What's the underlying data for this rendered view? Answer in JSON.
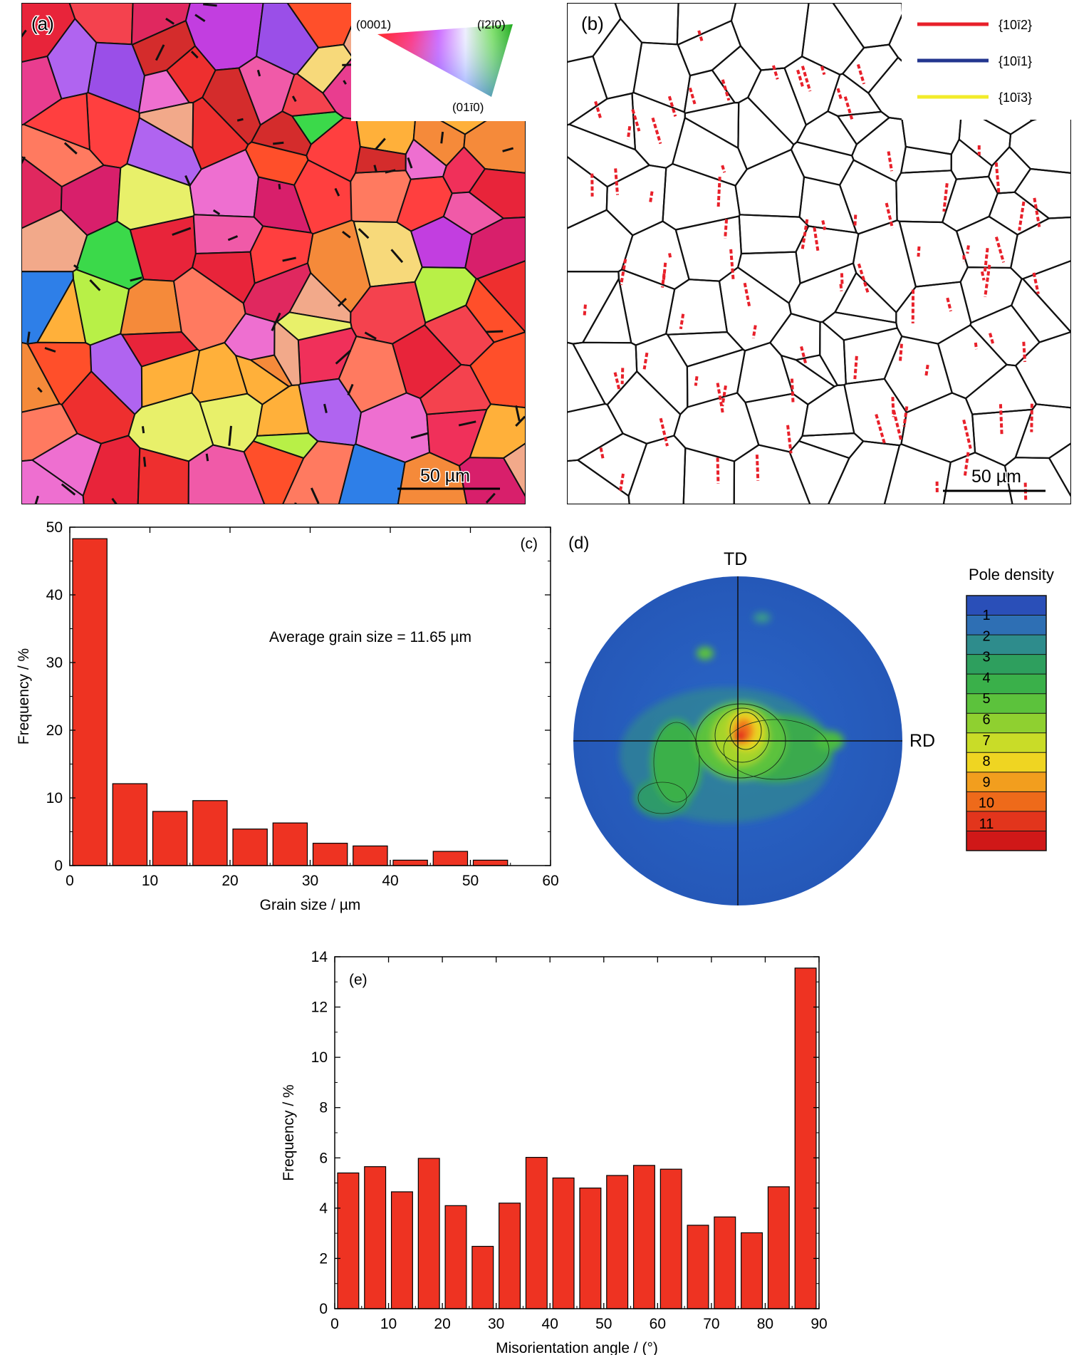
{
  "panels": {
    "a": {
      "label": "(a)",
      "ipf_key": {
        "corner_top_left": "(0001)",
        "corner_top_right": "(ī2ī0)",
        "corner_bottom": "(01ī0)"
      },
      "scale_bar": "50 µm"
    },
    "b": {
      "label": "(b)",
      "legend": [
        {
          "label": "{10ī2}",
          "color": "#e8202a"
        },
        {
          "label": "{10ī1}",
          "color": "#23368f"
        },
        {
          "label": "{10ī3}",
          "color": "#f2ec2a"
        }
      ],
      "scale_bar": "50 µm"
    },
    "d": {
      "label": "(d)",
      "axis_top": "TD",
      "axis_right": "RD",
      "colorbar_title": "Pole density",
      "colorbar_ticks": [
        "1",
        "2",
        "3",
        "4",
        "5",
        "6",
        "7",
        "8",
        "9",
        "10",
        "11"
      ]
    }
  },
  "chart_data": [
    {
      "id": "c",
      "type": "bar",
      "panel_label": "(c)",
      "annotation": "Average grain size = 11.65 µm",
      "xlabel": "Grain size / µm",
      "ylabel": "Frequency / %",
      "xlim": [
        0,
        60
      ],
      "ylim": [
        0,
        50
      ],
      "xticks": [
        0,
        10,
        20,
        30,
        40,
        50,
        60
      ],
      "yticks": [
        0,
        10,
        20,
        30,
        40,
        50
      ],
      "bin_width": 5,
      "x": [
        2.5,
        7.5,
        12.5,
        17.5,
        22.5,
        27.5,
        32.5,
        37.5,
        42.5,
        47.5,
        52.5
      ],
      "values": [
        48.3,
        12.1,
        8.0,
        9.6,
        5.4,
        6.3,
        3.3,
        2.9,
        0.8,
        2.1,
        0.8
      ],
      "bar_color": "#ee3322"
    },
    {
      "id": "e",
      "type": "bar",
      "panel_label": "(e)",
      "xlabel": "Misorientation angle / (°)",
      "ylabel": "Frequency / %",
      "xlim": [
        0,
        90
      ],
      "ylim": [
        0,
        14
      ],
      "xticks": [
        0,
        10,
        20,
        30,
        40,
        50,
        60,
        70,
        80,
        90
      ],
      "yticks": [
        0,
        2,
        4,
        6,
        8,
        10,
        12,
        14
      ],
      "bin_width": 5,
      "x": [
        2.5,
        7.5,
        12.5,
        17.5,
        22.5,
        27.5,
        32.5,
        37.5,
        42.5,
        47.5,
        52.5,
        57.5,
        62.5,
        67.5,
        72.5,
        77.5,
        82.5,
        87.5
      ],
      "values": [
        5.4,
        5.65,
        4.65,
        5.98,
        4.1,
        2.48,
        4.2,
        6.02,
        5.2,
        4.8,
        5.3,
        5.7,
        5.55,
        3.32,
        3.65,
        3.02,
        4.85,
        13.55
      ],
      "bar_color": "#ee3322"
    }
  ]
}
